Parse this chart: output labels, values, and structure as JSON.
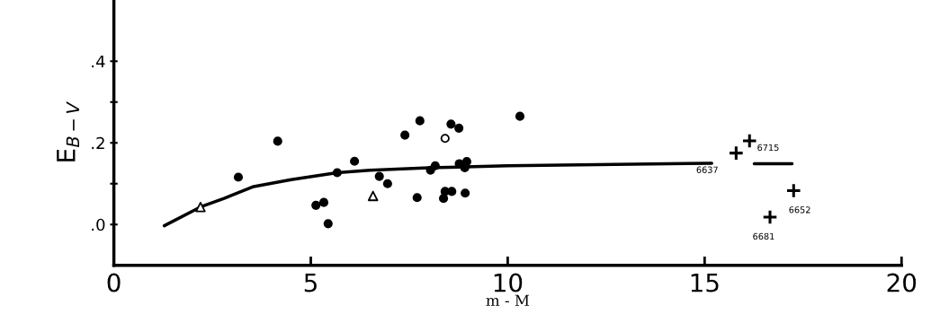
{
  "chart_data": {
    "type": "scatter",
    "xlabel": "m - M",
    "ylabel": "E$_{B−V}$",
    "xlim": [
      0,
      20
    ],
    "xticks": [
      0,
      5,
      10,
      15,
      20
    ],
    "ylim": [
      -0.1,
      0.55
    ],
    "yticks": [
      {
        "value": 0,
        "label": ".0"
      },
      {
        "value": 0.1,
        "label": null
      },
      {
        "value": 0.2,
        "label": ".2"
      },
      {
        "value": 0.3,
        "label": null
      },
      {
        "value": 0.4,
        "label": ".4"
      }
    ],
    "grid": false,
    "legend": false,
    "series": [
      {
        "type": "line",
        "color": "#000000",
        "line_style": "solid",
        "marker": "none",
        "x": [
          1.28,
          2.2,
          2.8,
          3.55,
          4.5,
          5.67,
          6.5,
          8.0,
          10.0,
          15.18,
          15.7,
          16.26,
          17.22
        ],
        "values": [
          -0.003,
          0.043,
          0.064,
          0.093,
          0.11,
          0.127,
          0.133,
          0.139,
          0.144,
          0.15,
          null,
          0.149,
          0.149
        ]
      },
      {
        "color": "#000000",
        "marker": "circle",
        "x": [
          3.16,
          4.16,
          5.13,
          5.33,
          5.44,
          5.67,
          6.11,
          6.74,
          6.95,
          7.39,
          7.77,
          7.7,
          8.04,
          8.16,
          8.56,
          8.76,
          8.77,
          8.96,
          8.91,
          8.41,
          8.58,
          8.37,
          8.92,
          10.31
        ],
        "values": [
          0.116,
          0.204,
          0.047,
          0.054,
          0.002,
          0.127,
          0.155,
          0.118,
          0.1,
          0.219,
          0.254,
          0.066,
          0.133,
          0.144,
          0.246,
          0.236,
          0.149,
          0.154,
          0.139,
          0.081,
          0.081,
          0.064,
          0.077,
          0.265
        ]
      },
      {
        "color": "#ffffff",
        "marker": "triangle",
        "x": [
          2.2,
          6.58
        ],
        "values": [
          0.043,
          0.07
        ]
      },
      {
        "color": "#ffffff",
        "marker": "circle",
        "x": [
          8.41
        ],
        "values": [
          0.211
        ]
      },
      {
        "color": "#000000",
        "marker": "cross",
        "x": [
          15.8,
          16.14,
          17.26,
          16.66
        ],
        "values": [
          0.175,
          0.205,
          0.083,
          0.018
        ]
      }
    ],
    "annotations": [
      {
        "text": "6637",
        "x": 15.8,
        "y": 0.175
      },
      {
        "text": "6715",
        "x": 16.14,
        "y": 0.205
      },
      {
        "text": "6652",
        "x": 17.26,
        "y": 0.083
      },
      {
        "text": "6681",
        "x": 16.66,
        "y": 0.018
      }
    ]
  }
}
